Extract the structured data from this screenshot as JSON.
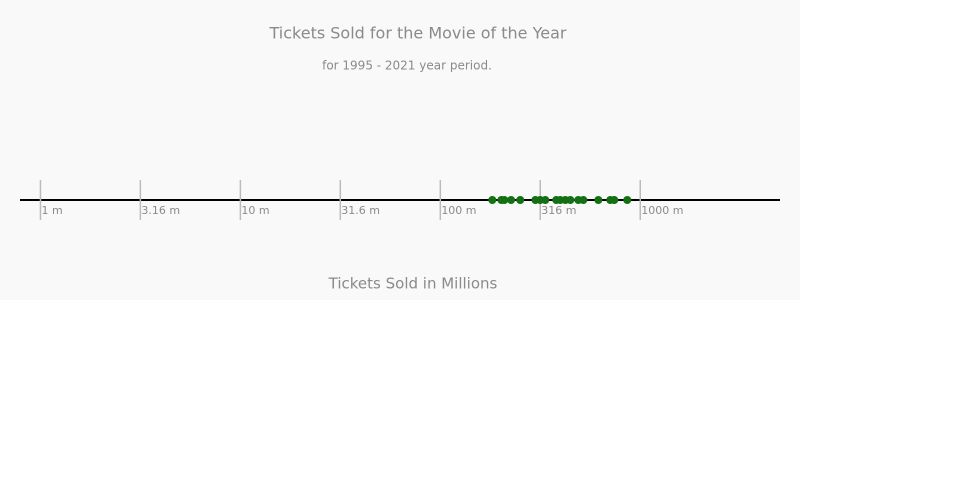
{
  "chart_data": {
    "type": "strip",
    "title": "Tickets Sold for the Movie of the Year",
    "subtitle": "for 1995 - 2021 year period.",
    "x_label": "Tickets Sold in Millions",
    "log_scale": true,
    "color": "#137013",
    "values": [
      182,
      202,
      209,
      226,
      251,
      299,
      316,
      335,
      380,
      398,
      422,
      447,
      490,
      519,
      617,
      708,
      741,
      861
    ],
    "xlim": [
      0.79,
      5000
    ],
    "xticks": [
      {
        "value": 1,
        "label": "1 m"
      },
      {
        "value": 3.16,
        "label": "3.16 m"
      },
      {
        "value": 10,
        "label": "10 m"
      },
      {
        "value": 31.6,
        "label": "31.6 m"
      },
      {
        "value": 100,
        "label": "100 m"
      },
      {
        "value": 316,
        "label": "316 m"
      },
      {
        "value": 1000,
        "label": "1000 m"
      }
    ]
  }
}
